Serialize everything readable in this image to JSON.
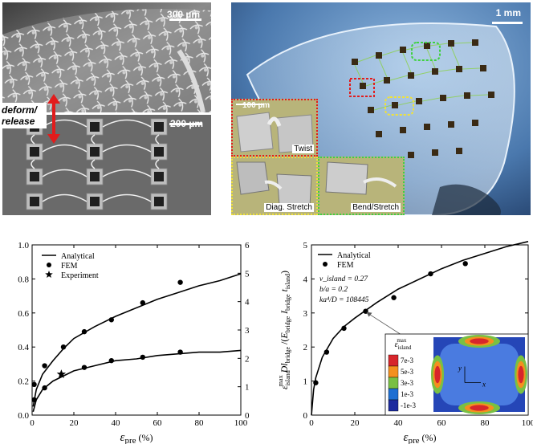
{
  "micrographs": {
    "sem_top_scale": "300 µm",
    "sem_bottom_scale": "200 µm",
    "deform_label_1": "deform/",
    "deform_label_2": "release",
    "photo_scale": "1 mm",
    "inset_scale": "100 µm",
    "inset_twist": "Twist",
    "inset_diag": "Diag. Stretch",
    "inset_bend": "Bend/Stretch"
  },
  "chart_data": [
    {
      "type": "line",
      "xlabel": "ε_pre (%)",
      "xlim": [
        0,
        100
      ],
      "ylim_left": [
        0,
        1.0
      ],
      "ylim_right": [
        0,
        6
      ],
      "x_ticks": [
        "0",
        "20",
        "40",
        "60",
        "80",
        "100"
      ],
      "y_ticks_left": [
        "0.0",
        "0.2",
        "0.4",
        "0.6",
        "0.8",
        "1.0"
      ],
      "y_ticks_right": [
        "0",
        "1",
        "2",
        "3",
        "4",
        "5",
        "6"
      ],
      "legend": {
        "position": "top-left",
        "entries": [
          "Analytical",
          "FEM",
          "Experiment"
        ]
      },
      "series": [
        {
          "name": "Analytical",
          "axis": "left",
          "style": "line",
          "x": [
            0.5,
            2,
            5,
            10,
            15,
            20,
            30,
            40,
            50,
            60,
            70,
            80,
            90,
            100
          ],
          "y": [
            0.05,
            0.15,
            0.24,
            0.32,
            0.39,
            0.45,
            0.52,
            0.58,
            0.63,
            0.68,
            0.72,
            0.76,
            0.79,
            0.83
          ]
        },
        {
          "name": "FEM",
          "axis": "left",
          "style": "dot",
          "x": [
            1,
            6,
            15,
            25,
            38,
            53,
            71
          ],
          "y": [
            0.18,
            0.29,
            0.4,
            0.49,
            0.56,
            0.66,
            0.78
          ]
        },
        {
          "name": "Analytical",
          "axis": "left",
          "style": "line",
          "x": [
            0.5,
            2,
            5,
            10,
            20,
            30,
            40,
            50,
            60,
            70,
            80,
            90,
            100
          ],
          "y": [
            0.02,
            0.09,
            0.15,
            0.2,
            0.26,
            0.29,
            0.32,
            0.33,
            0.35,
            0.36,
            0.37,
            0.37,
            0.38
          ]
        },
        {
          "name": "FEM",
          "axis": "left",
          "style": "dot",
          "x": [
            1,
            6,
            25,
            38,
            53,
            71
          ],
          "y": [
            0.09,
            0.16,
            0.28,
            0.32,
            0.34,
            0.37
          ]
        },
        {
          "name": "Experiment",
          "axis": "left",
          "style": "star",
          "x": [
            14
          ],
          "y": [
            0.24
          ]
        }
      ]
    },
    {
      "type": "line",
      "xlabel": "ε_pre (%)",
      "ylabel": "ε_island^max D l_bridge / (E_bridge I_bridge t_island)",
      "xlim": [
        0,
        100
      ],
      "ylim": [
        0,
        5
      ],
      "x_ticks": [
        "0",
        "20",
        "40",
        "60",
        "80",
        "100"
      ],
      "y_ticks": [
        "0",
        "1",
        "2",
        "3",
        "4",
        "5"
      ],
      "legend": {
        "position": "top-left",
        "entries": [
          "Analytical",
          "FEM"
        ]
      },
      "params": [
        "ν_island = 0.27",
        "b/a = 0.2",
        "ka⁴/D = 108445"
      ],
      "series": [
        {
          "name": "Analytical",
          "style": "line",
          "x": [
            0,
            1,
            2,
            5,
            10,
            15,
            20,
            30,
            40,
            50,
            60,
            70,
            80,
            90,
            100
          ],
          "y": [
            0.0,
            0.75,
            1.1,
            1.7,
            2.25,
            2.6,
            2.85,
            3.3,
            3.7,
            4.0,
            4.3,
            4.55,
            4.75,
            4.95,
            5.1
          ]
        },
        {
          "name": "FEM",
          "style": "dot",
          "x": [
            2,
            7,
            15,
            25,
            38,
            55,
            71
          ],
          "y": [
            0.95,
            1.85,
            2.55,
            3.05,
            3.45,
            4.15,
            4.45
          ]
        }
      ],
      "inset": {
        "legend_title": "ε_island^max",
        "colorbar_labels": [
          "7e-3",
          "5e-3",
          "3e-3",
          "1e-3",
          "-1e-3"
        ],
        "colorbar_colors": [
          "#d7262b",
          "#f4901e",
          "#79c043",
          "#1e6fd2",
          "#1c2a9e"
        ],
        "axis_x": "x",
        "axis_y": "y"
      }
    }
  ]
}
